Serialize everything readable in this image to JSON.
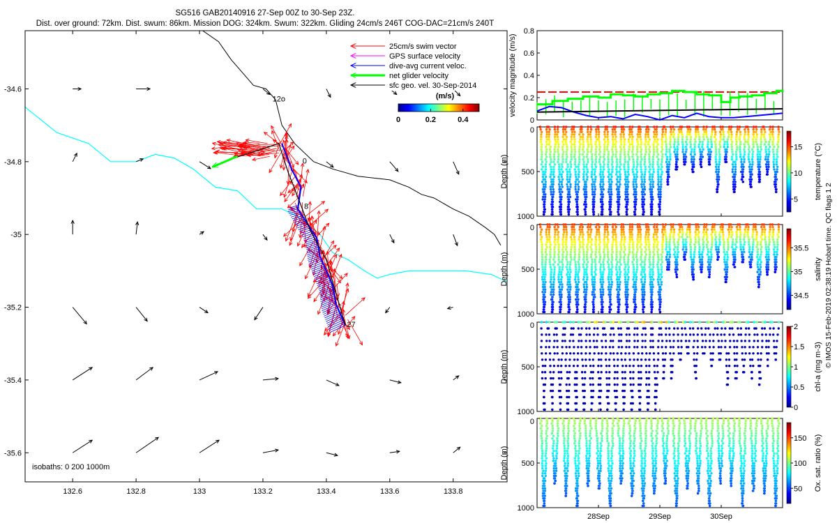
{
  "title": {
    "line1": "SG516 GAB20140916 27-Sep 00Z to 30-Sep 23Z.",
    "line2": "Dist. over ground: 72km. Dist. swum: 86km. Mission DOG: 324km. Swum: 322km. Gliding 24cm/s 246T COG-DAC=21cm/s 240T"
  },
  "map": {
    "xlim": [
      132.45,
      133.97
    ],
    "ylim": [
      -35.68,
      -34.44
    ],
    "xticks": [
      "132.6",
      "132.8",
      "133",
      "133.2",
      "133.4",
      "133.6",
      "133.8"
    ],
    "xtick_values": [
      132.6,
      132.8,
      133.0,
      133.2,
      133.4,
      133.6,
      133.8
    ],
    "yticks": [
      "-34.6",
      "-34.8",
      "-35",
      "-35.2",
      "-35.4",
      "-35.6"
    ],
    "ytick_values": [
      -34.6,
      -34.8,
      -35.0,
      -35.2,
      -35.4,
      -35.6
    ],
    "legend": [
      {
        "label": "25cm/s swim vector",
        "color": "#ff0000"
      },
      {
        "label": "GPS surface velocity",
        "color": "#ff00ff"
      },
      {
        "label": "dive-avg current veloc.",
        "color": "#0000ff"
      },
      {
        "label": "net glider velocity",
        "color": "#00ff00"
      },
      {
        "label": "sfc geo. vel. 30-Sep-2014",
        "color": "#000000"
      }
    ],
    "colorbar": {
      "ticks": [
        "0",
        "0.2",
        "0.4"
      ],
      "tick_values": [
        0,
        0.2,
        0.4
      ],
      "unit": "(m/s)",
      "range": [
        0,
        0.5
      ]
    },
    "isobath_note": "isobaths: 0   200   1000m",
    "day_labels": [
      {
        "text": "27",
        "lon": 133.465,
        "lat": -35.255
      },
      {
        "text": "0",
        "lon": 133.325,
        "lat": -34.805
      },
      {
        "text": "8",
        "lon": 133.33,
        "lat": -34.93
      },
      {
        "text": "12o",
        "lon": 133.23,
        "lat": -34.635
      }
    ],
    "isobath_0m": [
      [
        132.45,
        -34.65
      ],
      [
        132.55,
        -34.72
      ],
      [
        132.65,
        -34.75
      ],
      [
        132.72,
        -34.8
      ],
      [
        132.8,
        -34.8
      ],
      [
        132.86,
        -34.78
      ],
      [
        132.92,
        -34.79
      ],
      [
        132.98,
        -34.82
      ],
      [
        133.05,
        -34.87
      ],
      [
        133.12,
        -34.88
      ],
      [
        133.18,
        -34.93
      ],
      [
        133.26,
        -34.93
      ],
      [
        133.31,
        -34.95
      ],
      [
        133.38,
        -35.0
      ],
      [
        133.42,
        -35.05
      ],
      [
        133.47,
        -35.07
      ],
      [
        133.52,
        -35.1
      ],
      [
        133.56,
        -35.12
      ],
      [
        133.6,
        -35.11
      ],
      [
        133.66,
        -35.1
      ],
      [
        133.74,
        -35.1
      ],
      [
        133.84,
        -35.1
      ],
      [
        133.92,
        -35.11
      ],
      [
        133.97,
        -35.13
      ]
    ],
    "isobath_200m": [
      [
        133.01,
        -34.44
      ],
      [
        133.06,
        -34.47
      ],
      [
        133.1,
        -34.52
      ],
      [
        133.14,
        -34.56
      ],
      [
        133.17,
        -34.59
      ],
      [
        133.21,
        -34.6
      ],
      [
        133.24,
        -34.63
      ],
      [
        133.26,
        -34.7
      ],
      [
        133.3,
        -34.75
      ],
      [
        133.36,
        -34.8
      ],
      [
        133.42,
        -34.82
      ],
      [
        133.5,
        -34.84
      ],
      [
        133.6,
        -34.85
      ],
      [
        133.66,
        -34.87
      ],
      [
        133.7,
        -34.89
      ],
      [
        133.74,
        -34.9
      ],
      [
        133.8,
        -34.93
      ],
      [
        133.85,
        -34.95
      ],
      [
        133.9,
        -34.98
      ],
      [
        133.93,
        -35.0
      ],
      [
        133.95,
        -35.03
      ]
    ],
    "track_blue": [
      [
        133.26,
        -34.75
      ],
      [
        133.29,
        -34.82
      ],
      [
        133.32,
        -34.87
      ],
      [
        133.31,
        -34.93
      ],
      [
        133.34,
        -34.97
      ],
      [
        133.37,
        -35.01
      ],
      [
        133.38,
        -35.06
      ],
      [
        133.4,
        -35.1
      ],
      [
        133.42,
        -35.14
      ],
      [
        133.43,
        -35.19
      ],
      [
        133.45,
        -35.23
      ],
      [
        133.46,
        -35.25
      ]
    ],
    "track_black": [
      [
        133.46,
        -35.25
      ],
      [
        133.43,
        -35.16
      ],
      [
        133.4,
        -35.07
      ],
      [
        133.35,
        -34.99
      ],
      [
        133.32,
        -34.92
      ],
      [
        133.28,
        -34.83
      ],
      [
        133.25,
        -34.75
      ],
      [
        133.18,
        -34.77
      ],
      [
        133.11,
        -34.79
      ],
      [
        133.05,
        -34.81
      ]
    ],
    "net_velocity_green": [
      [
        133.12,
        -34.785
      ],
      [
        133.04,
        -34.815
      ]
    ],
    "surface_arrows": [
      {
        "lon": 132.6,
        "lat": -34.6,
        "u": 0.6,
        "v": 0.0
      },
      {
        "lon": 132.8,
        "lat": -34.6,
        "u": 1.0,
        "v": 0.0
      },
      {
        "lon": 133.2,
        "lat": -34.6,
        "u": 0.5,
        "v": -0.4
      },
      {
        "lon": 133.4,
        "lat": -34.6,
        "u": 0.3,
        "v": -0.6
      },
      {
        "lon": 133.6,
        "lat": -34.6,
        "u": 0.5,
        "v": -0.4
      },
      {
        "lon": 133.8,
        "lat": -34.6,
        "u": 0.5,
        "v": -0.5
      },
      {
        "lon": 132.6,
        "lat": -34.8,
        "u": 0.3,
        "v": 0.6
      },
      {
        "lon": 132.8,
        "lat": -34.8,
        "u": 0.5,
        "v": 0.2
      },
      {
        "lon": 133.0,
        "lat": -34.8,
        "u": 0.8,
        "v": -0.5
      },
      {
        "lon": 133.4,
        "lat": -34.8,
        "u": 0.5,
        "v": -0.4
      },
      {
        "lon": 133.6,
        "lat": -34.8,
        "u": 0.6,
        "v": -0.7
      },
      {
        "lon": 133.8,
        "lat": -34.8,
        "u": 0.4,
        "v": -0.9
      },
      {
        "lon": 132.6,
        "lat": -35.0,
        "u": 0.0,
        "v": 1.0
      },
      {
        "lon": 132.8,
        "lat": -35.0,
        "u": 0.1,
        "v": 0.9
      },
      {
        "lon": 133.0,
        "lat": -35.0,
        "u": 0.3,
        "v": 0.2
      },
      {
        "lon": 133.2,
        "lat": -35.0,
        "u": 0.3,
        "v": -0.4
      },
      {
        "lon": 133.6,
        "lat": -35.0,
        "u": 0.3,
        "v": -0.6
      },
      {
        "lon": 133.8,
        "lat": -35.0,
        "u": 0.3,
        "v": -0.8
      },
      {
        "lon": 132.6,
        "lat": -35.2,
        "u": 1.0,
        "v": -1.2
      },
      {
        "lon": 132.8,
        "lat": -35.2,
        "u": 0.8,
        "v": -1.0
      },
      {
        "lon": 133.0,
        "lat": -35.2,
        "u": 0.6,
        "v": -0.4
      },
      {
        "lon": 133.2,
        "lat": -35.2,
        "u": -0.6,
        "v": -0.9
      },
      {
        "lon": 133.6,
        "lat": -35.2,
        "u": -0.3,
        "v": -0.4
      },
      {
        "lon": 133.8,
        "lat": -35.2,
        "u": -0.4,
        "v": -0.1
      },
      {
        "lon": 132.6,
        "lat": -35.4,
        "u": 1.4,
        "v": 0.9
      },
      {
        "lon": 132.8,
        "lat": -35.4,
        "u": 1.2,
        "v": 0.9
      },
      {
        "lon": 133.0,
        "lat": -35.4,
        "u": 1.3,
        "v": 0.6
      },
      {
        "lon": 133.2,
        "lat": -35.4,
        "u": 1.1,
        "v": 0.1
      },
      {
        "lon": 133.4,
        "lat": -35.4,
        "u": 0.9,
        "v": -0.4
      },
      {
        "lon": 133.6,
        "lat": -35.4,
        "u": 0.8,
        "v": -0.2
      },
      {
        "lon": 133.8,
        "lat": -35.4,
        "u": 0.4,
        "v": 0.3
      },
      {
        "lon": 132.6,
        "lat": -35.6,
        "u": 1.4,
        "v": 0.9
      },
      {
        "lon": 132.8,
        "lat": -35.6,
        "u": 1.6,
        "v": 1.1
      },
      {
        "lon": 133.0,
        "lat": -35.6,
        "u": 1.4,
        "v": 0.9
      },
      {
        "lon": 133.2,
        "lat": -35.6,
        "u": 1.1,
        "v": 0.2
      },
      {
        "lon": 133.4,
        "lat": -35.6,
        "u": 0.8,
        "v": -0.2
      },
      {
        "lon": 133.6,
        "lat": -35.6,
        "u": 0.7,
        "v": 0.1
      },
      {
        "lon": 133.8,
        "lat": -35.6,
        "u": 0.5,
        "v": 0.4
      }
    ]
  },
  "time_axis": {
    "range_days": [
      27.0,
      31.0
    ],
    "ticks": [
      "28Sep",
      "29Sep",
      "30Sep"
    ],
    "tick_values": [
      28,
      29,
      30
    ]
  },
  "velocity_panel": {
    "ylabel": "velocity magnitude (m/s)",
    "ylim": [
      0,
      0.8
    ],
    "yticks": [
      "0",
      "0.2",
      "0.4",
      "0.6",
      "0.8"
    ],
    "ytick_values": [
      0,
      0.2,
      0.4,
      0.6,
      0.8
    ],
    "series": [
      {
        "key": "red",
        "color": "#ff0000",
        "style": "dashed",
        "x": [
          27.0,
          31.0
        ],
        "y": [
          0.25,
          0.25
        ]
      },
      {
        "key": "green",
        "color": "#00ff00",
        "style": "steps",
        "x": [
          27.0,
          27.25,
          27.5,
          27.75,
          28.0,
          28.2,
          28.4,
          28.6,
          28.8,
          29.0,
          29.2,
          29.4,
          29.6,
          29.8,
          30.0,
          30.15,
          30.3,
          30.5,
          30.7,
          30.9,
          31.0
        ],
        "y": [
          0.14,
          0.17,
          0.19,
          0.21,
          0.2,
          0.23,
          0.22,
          0.21,
          0.23,
          0.24,
          0.26,
          0.25,
          0.23,
          0.22,
          0.16,
          0.2,
          0.21,
          0.22,
          0.24,
          0.26,
          0.27
        ]
      },
      {
        "key": "blue",
        "color": "#0000ff",
        "style": "solid",
        "x": [
          27.0,
          27.2,
          27.4,
          27.6,
          27.8,
          28.0,
          28.2,
          28.4,
          28.6,
          28.8,
          29.0,
          29.2,
          29.4,
          29.6,
          29.8,
          30.0,
          30.2,
          30.4,
          30.6,
          30.8,
          31.0
        ],
        "y": [
          0.08,
          0.12,
          0.11,
          0.07,
          0.04,
          0.02,
          0.03,
          0.01,
          0.05,
          0.03,
          0.0,
          0.04,
          0.02,
          0.06,
          0.03,
          0.02,
          0.02,
          0.03,
          0.04,
          0.05,
          0.06
        ]
      },
      {
        "key": "black",
        "color": "#000000",
        "style": "solid",
        "x": [
          27.0,
          31.0
        ],
        "y": [
          0.07,
          0.1
        ]
      }
    ]
  },
  "profile_panels": [
    {
      "key": "temperature",
      "clabel": "temperature (°C)",
      "cticks": [
        "5",
        "10",
        "15"
      ],
      "ctick_values": [
        5,
        10,
        15
      ],
      "crange": [
        2.5,
        18
      ],
      "ylabel": "Depth (m)",
      "yticks": [
        "0",
        "500",
        "1000"
      ],
      "ymax": 1000,
      "count": 29
    },
    {
      "key": "salinity",
      "clabel": "salinity",
      "cticks": [
        "34.5",
        "35",
        "35.5"
      ],
      "ctick_values": [
        34.5,
        35.0,
        35.5
      ],
      "crange": [
        34.2,
        35.9
      ],
      "ylabel": "Depth (m)",
      "yticks": [
        "0",
        "500",
        "1000"
      ],
      "ymax": 1000,
      "count": 29
    },
    {
      "key": "chla",
      "clabel": "chl-a (mg m-3)",
      "cticks": [
        "0",
        "0.5",
        "1",
        "1.5",
        "2"
      ],
      "ctick_values": [
        0,
        0.5,
        1,
        1.5,
        2
      ],
      "crange": [
        0,
        2
      ],
      "ylabel": "Depth (m)",
      "yticks": [
        "0",
        "500",
        "1000"
      ],
      "ymax": 1000,
      "count": 30
    },
    {
      "key": "oxygen",
      "clabel": "Ox. sat. ratio (%)",
      "cticks": [
        "50",
        "100",
        "150"
      ],
      "ctick_values": [
        50,
        100,
        150
      ],
      "crange": [
        20,
        180
      ],
      "ylabel": "Depth (m)",
      "yticks": [
        "0",
        "500",
        "1000"
      ],
      "ymax": 1000,
      "count": 22
    }
  ],
  "side_note": "© IMOS 15-Feb-2019 02:38:19 Hobart time. QC flags 1  2",
  "colors": {
    "cyan": "#00ffff",
    "red": "#ff0000",
    "blue": "#0000ff",
    "green": "#00ff00",
    "magenta": "#ff00ff"
  }
}
